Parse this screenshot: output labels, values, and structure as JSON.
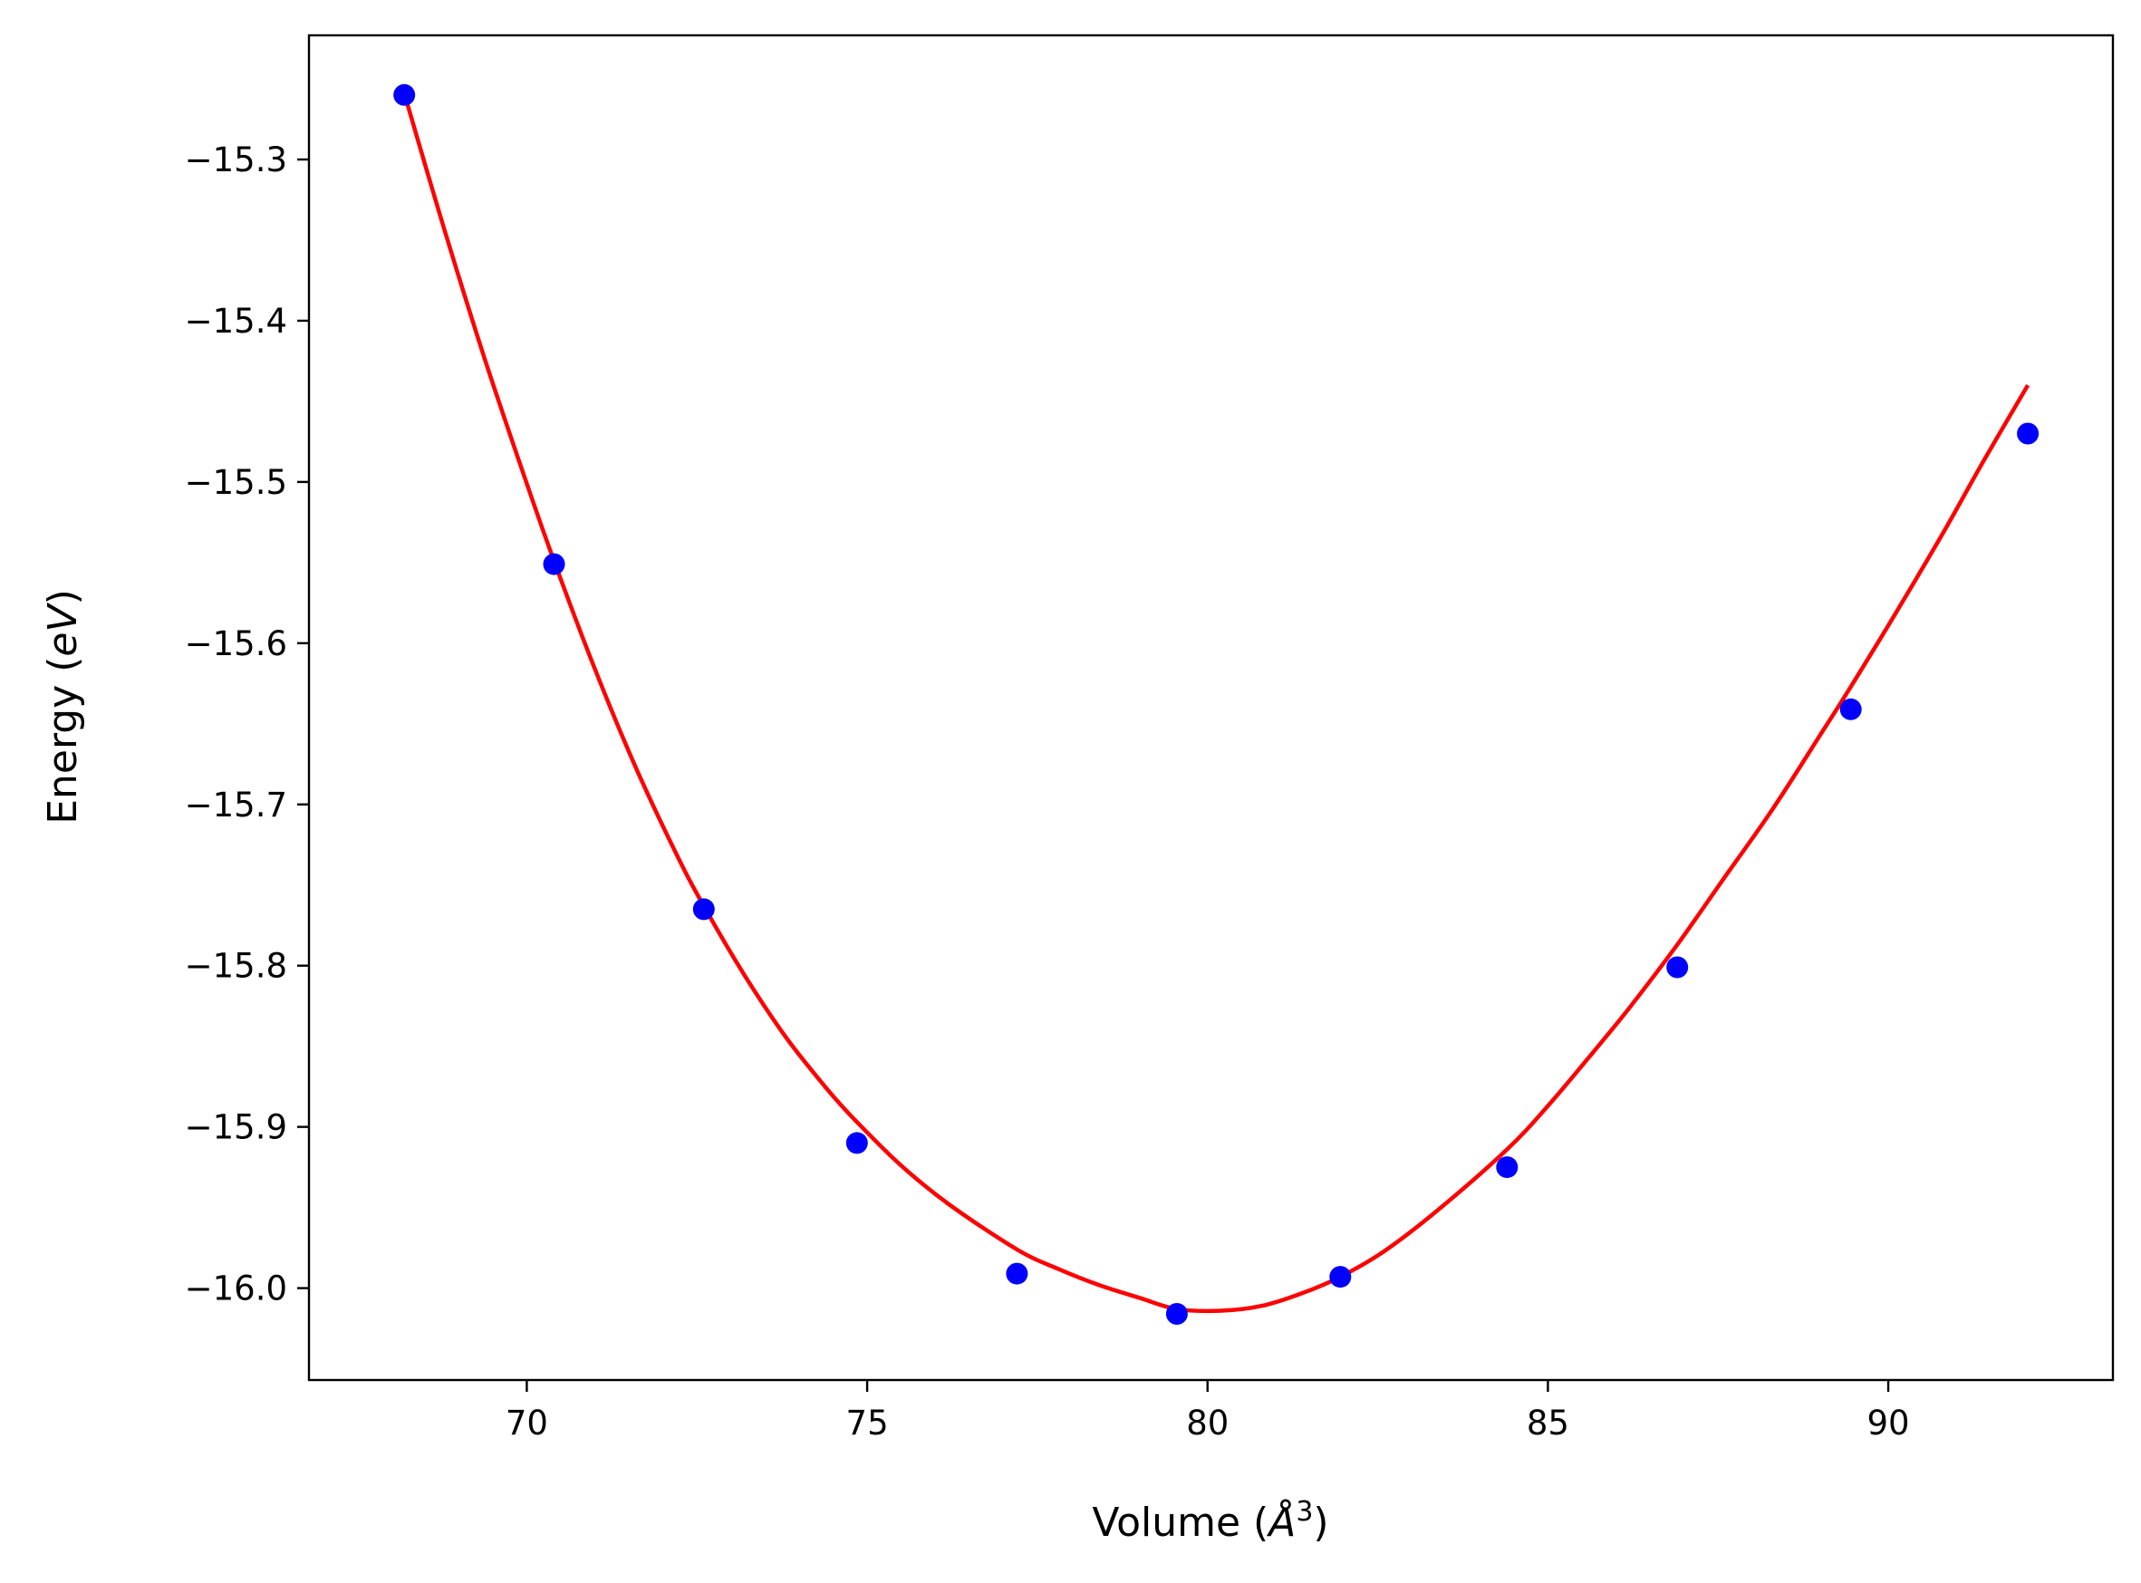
{
  "chart_data": {
    "type": "scatter",
    "title": "",
    "xlabel": "Volume (",
    "xlabel_symbol": "Å",
    "xlabel_exponent": "3",
    "xlabel_suffix": ")",
    "ylabel": "Energy (",
    "ylabel_symbol": "eV",
    "ylabel_suffix": ")",
    "xlim": [
      66.8,
      93.3
    ],
    "ylim": [
      -16.057,
      -15.223
    ],
    "xticks": [
      70,
      75,
      80,
      85,
      90
    ],
    "yticks": [
      -15.3,
      -15.4,
      -15.5,
      -15.6,
      -15.7,
      -15.8,
      -15.9,
      -16.0
    ],
    "ytick_labels": [
      "−15.3",
      "−15.4",
      "−15.5",
      "−15.6",
      "−15.7",
      "−15.8",
      "−15.9",
      "−16.0"
    ],
    "grid": false,
    "series": [
      {
        "kind": "points",
        "color": "#0000ff",
        "x": [
          68.2,
          70.4,
          72.6,
          74.85,
          77.2,
          79.55,
          81.95,
          84.4,
          86.9,
          89.45,
          92.05
        ],
        "y": [
          -15.26,
          -15.551,
          -15.765,
          -15.91,
          -15.991,
          -16.016,
          -15.993,
          -15.925,
          -15.801,
          -15.641,
          -15.47
        ]
      },
      {
        "kind": "fit-curve",
        "color": "#ff0000",
        "x": [
          68.2,
          68.8,
          69.4,
          70.0,
          70.4,
          71.0,
          71.6,
          72.2,
          72.6,
          73.2,
          73.8,
          74.4,
          74.85,
          75.5,
          76.2,
          77.2,
          77.8,
          78.4,
          79.0,
          79.55,
          80.2,
          80.8,
          81.4,
          81.95,
          82.6,
          83.4,
          84.4,
          85.0,
          85.6,
          86.2,
          86.9,
          87.6,
          88.3,
          89.0,
          89.45,
          90.1,
          90.8,
          91.4,
          92.05
        ],
        "y": [
          -15.259,
          -15.345,
          -15.426,
          -15.501,
          -15.549,
          -15.616,
          -15.677,
          -15.731,
          -15.763,
          -15.806,
          -15.844,
          -15.876,
          -15.897,
          -15.924,
          -15.948,
          -15.976,
          -15.988,
          -15.998,
          -16.006,
          -16.013,
          -16.014,
          -16.011,
          -16.003,
          -15.993,
          -15.977,
          -15.951,
          -15.914,
          -15.887,
          -15.857,
          -15.826,
          -15.787,
          -15.745,
          -15.703,
          -15.657,
          -15.627,
          -15.582,
          -15.532,
          -15.487,
          -15.44
        ]
      }
    ]
  }
}
